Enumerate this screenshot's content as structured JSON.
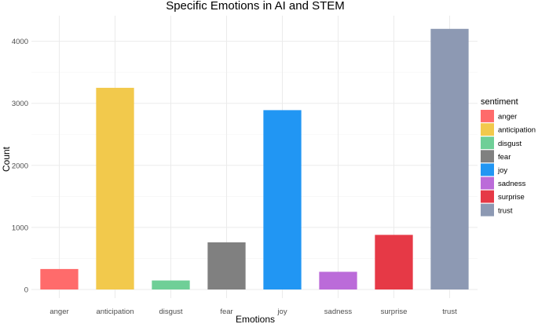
{
  "chart_data": {
    "type": "bar",
    "title": "Specific Emotions in AI and STEM",
    "xlabel": "Emotions",
    "ylabel": "Count",
    "categories": [
      "anger",
      "anticipation",
      "disgust",
      "fear",
      "joy",
      "sadness",
      "surprise",
      "trust"
    ],
    "values": [
      330,
      3250,
      145,
      760,
      2890,
      285,
      880,
      4200
    ],
    "colors": [
      "#ff6b6b",
      "#f2c94c",
      "#6fcf97",
      "#808080",
      "#2196f3",
      "#bb6bd9",
      "#e63946",
      "#8d99b3"
    ],
    "ylim": [
      0,
      4400
    ],
    "yticks": [
      0,
      1000,
      2000,
      3000,
      4000
    ],
    "grid": true,
    "legend": {
      "title": "sentiment",
      "position": "right",
      "entries": [
        "anger",
        "anticipation",
        "disgust",
        "fear",
        "joy",
        "sadness",
        "surprise",
        "trust"
      ]
    }
  }
}
